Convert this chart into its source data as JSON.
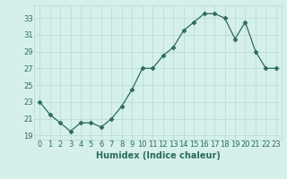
{
  "x": [
    0,
    1,
    2,
    3,
    4,
    5,
    6,
    7,
    8,
    9,
    10,
    11,
    12,
    13,
    14,
    15,
    16,
    17,
    18,
    19,
    20,
    21,
    22,
    23
  ],
  "y": [
    23.0,
    21.5,
    20.5,
    19.5,
    20.5,
    20.5,
    20.0,
    21.0,
    22.5,
    24.5,
    27.0,
    27.0,
    28.5,
    29.5,
    31.5,
    32.5,
    33.5,
    33.5,
    33.0,
    30.5,
    32.5,
    29.0,
    27.0,
    27.0
  ],
  "xlabel": "Humidex (Indice chaleur)",
  "xlim": [
    -0.5,
    23.5
  ],
  "ylim": [
    18.5,
    34.5
  ],
  "yticks": [
    19,
    21,
    23,
    25,
    27,
    29,
    31,
    33
  ],
  "xticks": [
    0,
    1,
    2,
    3,
    4,
    5,
    6,
    7,
    8,
    9,
    10,
    11,
    12,
    13,
    14,
    15,
    16,
    17,
    18,
    19,
    20,
    21,
    22,
    23
  ],
  "line_color": "#2d6b5c",
  "marker": "D",
  "marker_size": 2.5,
  "bg_color": "#d5f0eb",
  "grid_color": "#b8d8d0",
  "axis_fontsize": 7,
  "tick_fontsize": 6,
  "xlabel_color": "#2d6b5c"
}
